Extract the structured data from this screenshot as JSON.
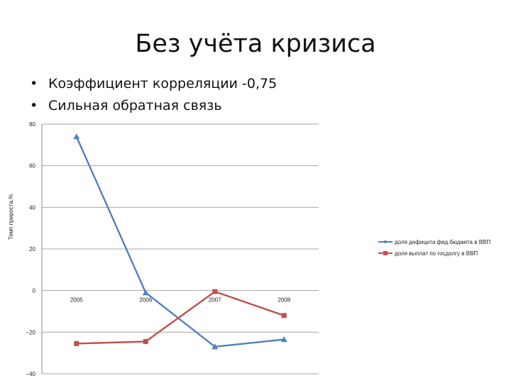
{
  "slide": {
    "title": "Без учёта кризиса",
    "bullets": [
      "Коэффициент корреляции -0,75",
      "Сильная обратная связь"
    ]
  },
  "chart_data": {
    "type": "line",
    "title": "",
    "xlabel": "",
    "ylabel": "Темп прироста,%",
    "categories": [
      "2005",
      "2006",
      "2007",
      "2008"
    ],
    "ylim": [
      -40,
      80
    ],
    "yticks": [
      80,
      60,
      40,
      20,
      0,
      -20,
      -40
    ],
    "grid": true,
    "legend_position": "right",
    "series": [
      {
        "name": "доля дефицита фед.бюджета в ВВП",
        "values": [
          74,
          -1,
          -27,
          -23.5
        ],
        "color": "#4f81bd",
        "marker": "triangle"
      },
      {
        "name": "доля выплат по госдолгу в ВВП",
        "values": [
          -25.5,
          -24.5,
          -0.5,
          -12
        ],
        "color": "#c0504d",
        "marker": "square"
      }
    ]
  }
}
